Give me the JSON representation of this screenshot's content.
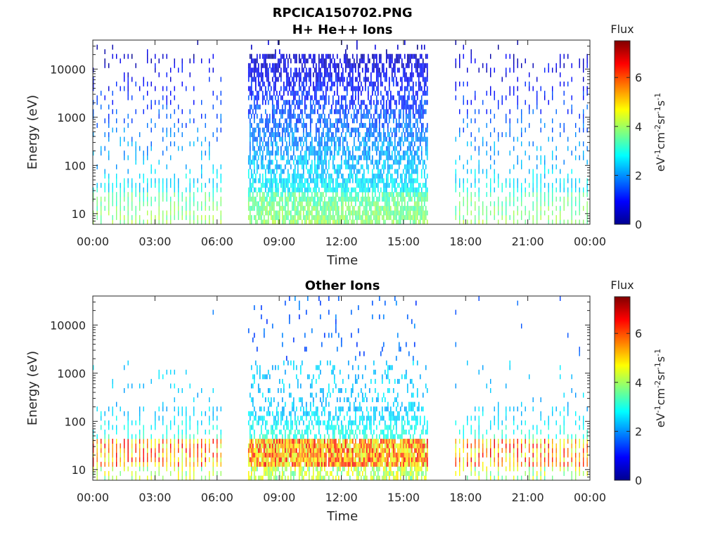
{
  "figure": {
    "title": "RPCICA150702.PNG"
  },
  "chart_data": [
    {
      "type": "heatmap",
      "title": "H+ He++ Ions",
      "xlabel": "Time",
      "ylabel": "Energy (eV)",
      "y_scale": "log",
      "xlim": [
        "00:00",
        "24:00"
      ],
      "ylim": [
        6,
        40000
      ],
      "x_tick_labels": [
        "00:00",
        "03:00",
        "06:00",
        "09:00",
        "12:00",
        "15:00",
        "18:00",
        "21:00",
        "00:00"
      ],
      "y_ticks": [
        10,
        100,
        1000,
        10000
      ],
      "y_tick_labels": [
        "10",
        "100",
        "1000",
        "10000"
      ],
      "colorbar": {
        "title": "Flux",
        "label": "eV-1cm-2sr-1s-1",
        "range": [
          0,
          7.5
        ],
        "ticks": [
          "0",
          "2",
          "4",
          "6"
        ],
        "colormap": "jet"
      },
      "data_segments": [
        [
          "00:00",
          "06:10"
        ],
        [
          "07:30",
          "16:10"
        ],
        [
          "17:30",
          "24:00"
        ]
      ],
      "grid": false
    },
    {
      "type": "heatmap",
      "title": "Other Ions",
      "xlabel": "Time",
      "ylabel": "Energy (eV)",
      "y_scale": "log",
      "xlim": [
        "00:00",
        "24:00"
      ],
      "ylim": [
        6,
        40000
      ],
      "x_tick_labels": [
        "00:00",
        "03:00",
        "06:00",
        "09:00",
        "12:00",
        "15:00",
        "18:00",
        "21:00",
        "00:00"
      ],
      "y_ticks": [
        10,
        100,
        1000,
        10000
      ],
      "y_tick_labels": [
        "10",
        "100",
        "1000",
        "10000"
      ],
      "colorbar": {
        "title": "Flux",
        "label": "eV-1cm-2sr-1s-1",
        "range": [
          0,
          7.5
        ],
        "ticks": [
          "0",
          "2",
          "4",
          "6"
        ],
        "colormap": "jet"
      },
      "data_segments": [
        [
          "00:00",
          "06:10"
        ],
        [
          "07:30",
          "16:10"
        ],
        [
          "17:30",
          "24:00"
        ]
      ],
      "grid": false
    }
  ]
}
